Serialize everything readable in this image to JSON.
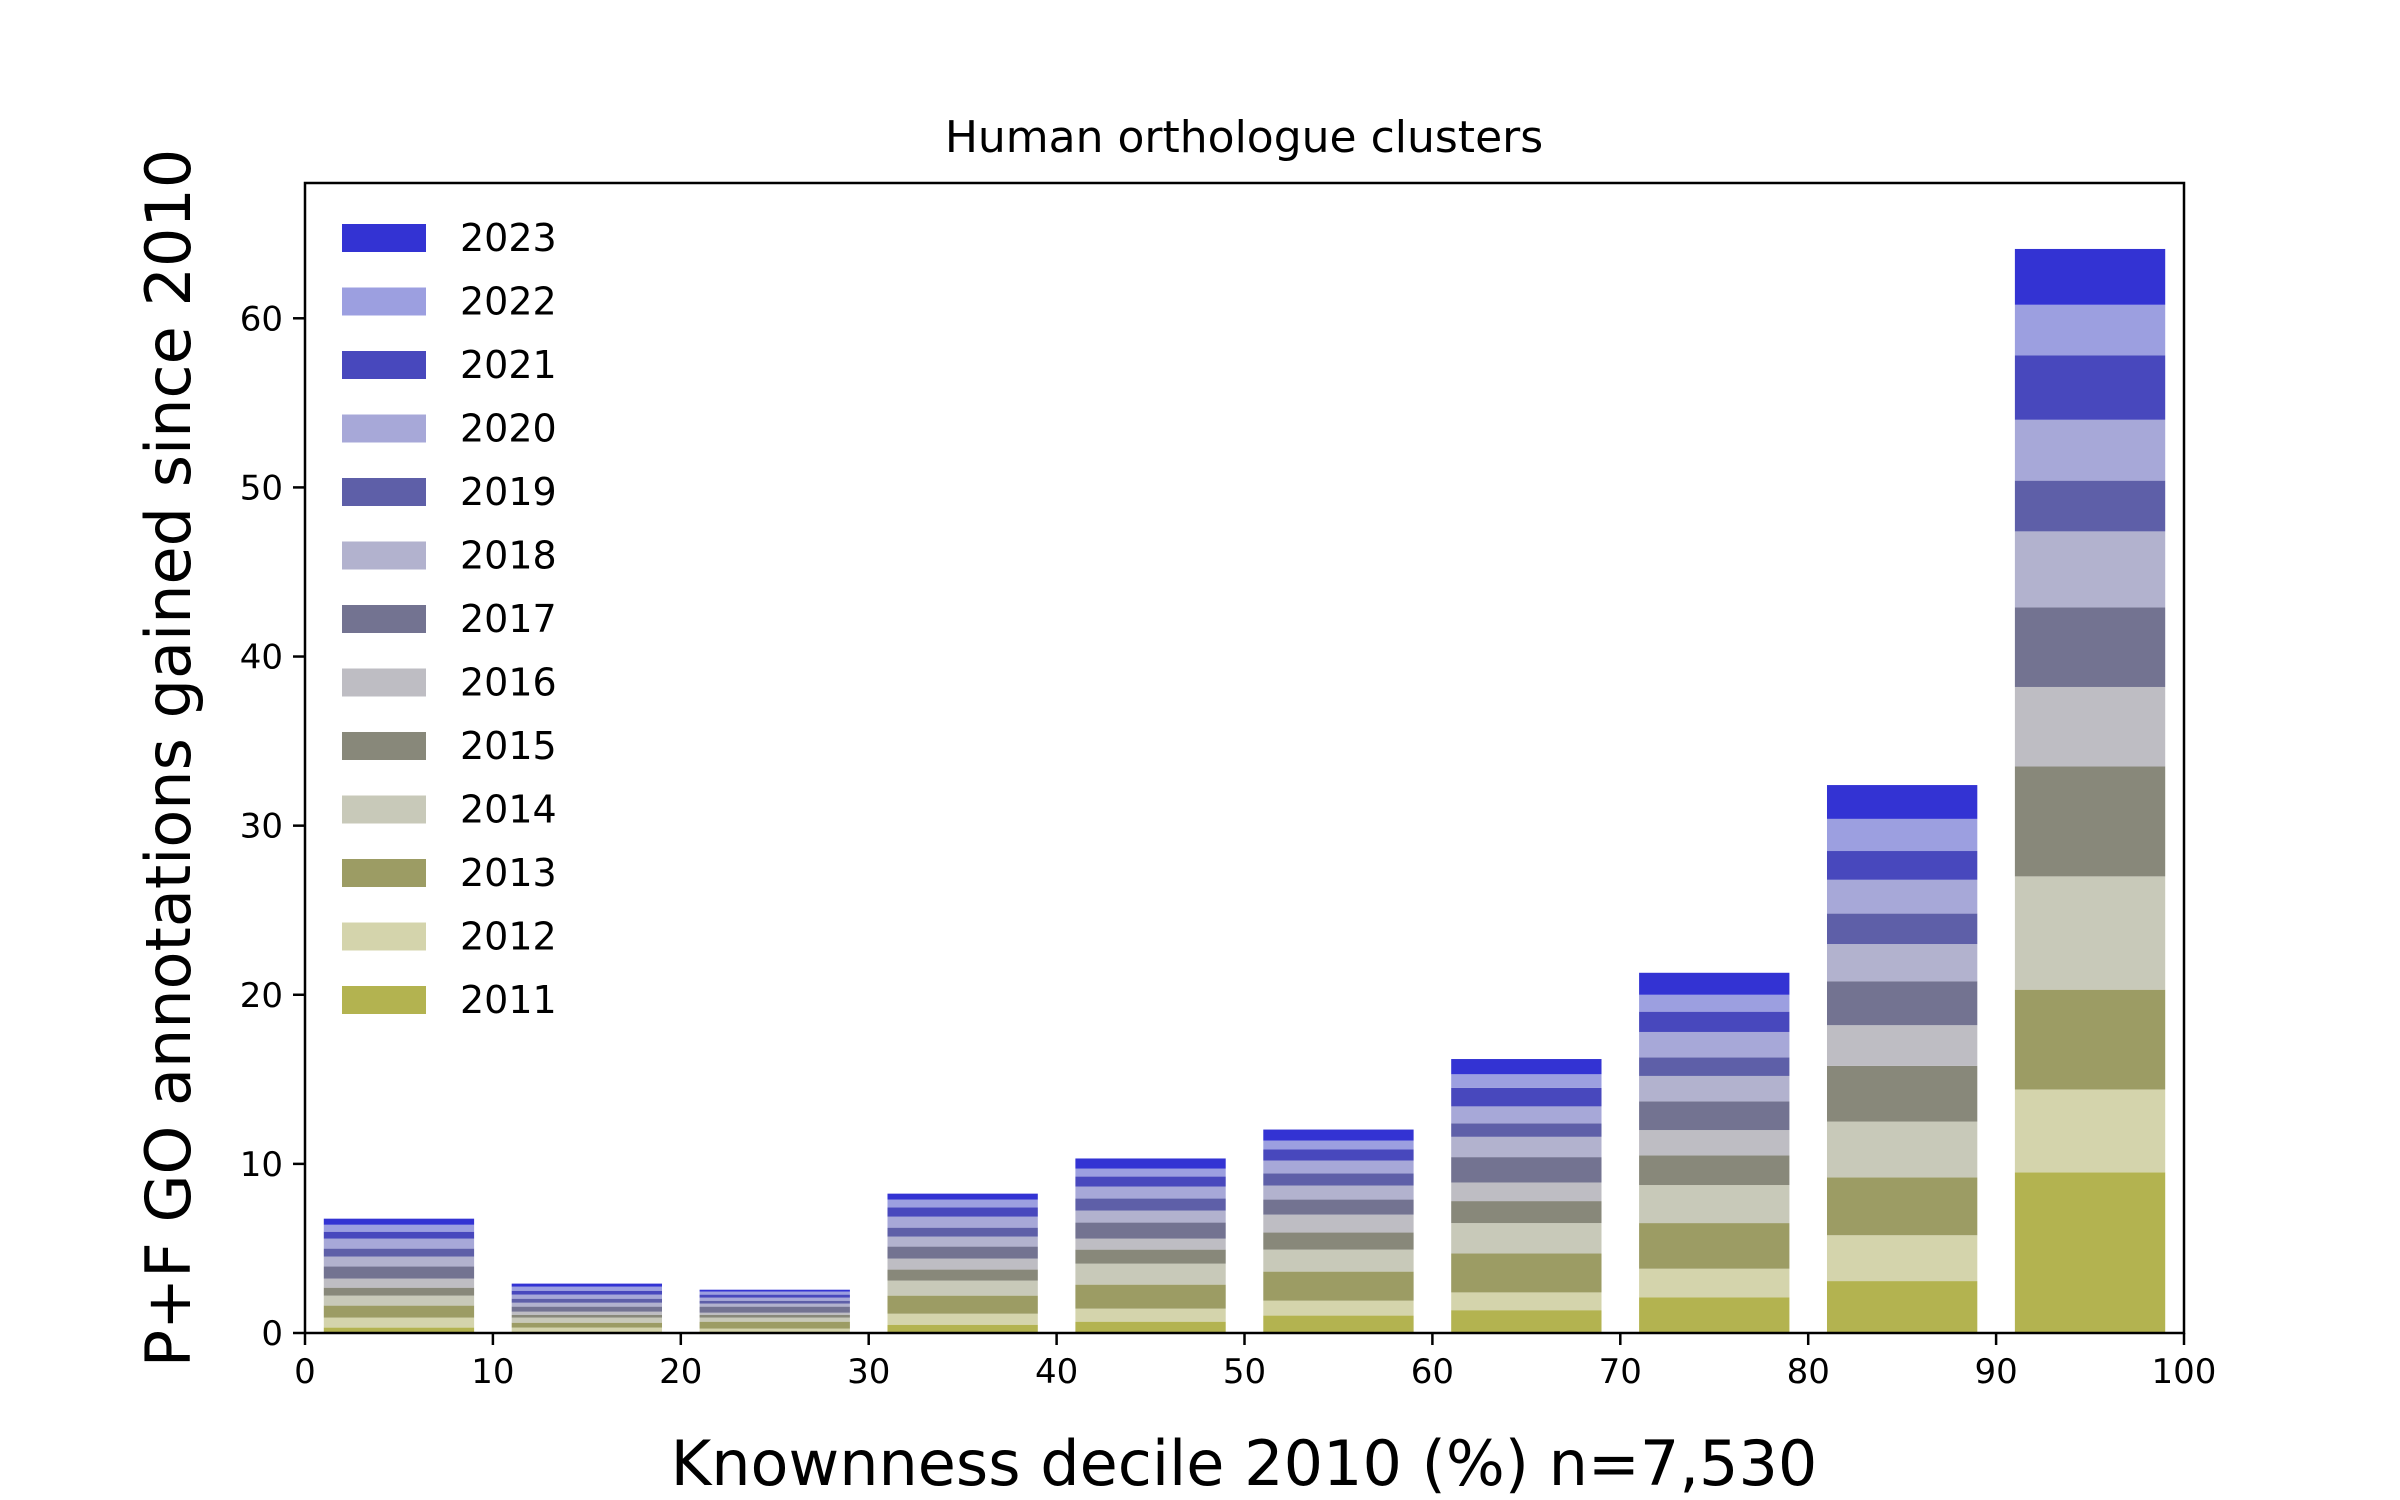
{
  "chart_data": {
    "type": "bar",
    "stacked": true,
    "title": "Human orthologue clusters",
    "xlabel": "Knownness decile 2010 (%) n=7,530",
    "ylabel": "P+F GO annotations gained since 2010",
    "xlim": [
      0,
      100
    ],
    "ylim": [
      0,
      68
    ],
    "xticks": [
      0,
      10,
      20,
      30,
      40,
      50,
      60,
      70,
      80,
      90,
      100
    ],
    "yticks": [
      0,
      10,
      20,
      30,
      40,
      50,
      60
    ],
    "categories": [
      "0-10",
      "10-20",
      "20-30",
      "30-40",
      "40-50",
      "50-60",
      "60-70",
      "70-80",
      "80-90",
      "90-100"
    ],
    "bar_start": [
      1,
      11,
      21,
      31,
      41,
      51,
      61,
      71,
      81,
      91
    ],
    "bar_width": 8,
    "legend_position": "upper-left",
    "series": [
      {
        "name": "2011",
        "color": "#b3b350",
        "values": [
          0.32,
          0.08,
          0.08,
          0.49,
          0.67,
          1.03,
          1.35,
          2.1,
          3.07,
          9.5
        ]
      },
      {
        "name": "2012",
        "color": "#d4d4ac",
        "values": [
          0.59,
          0.24,
          0.18,
          0.65,
          0.77,
          0.88,
          1.05,
          1.7,
          2.71,
          4.9
        ]
      },
      {
        "name": "2013",
        "color": "#9c9c64",
        "values": [
          0.71,
          0.29,
          0.41,
          1.07,
          1.42,
          1.72,
          2.3,
          2.7,
          3.42,
          5.9
        ]
      },
      {
        "name": "2014",
        "color": "#c8c9b9",
        "values": [
          0.59,
          0.3,
          0.24,
          0.89,
          1.24,
          1.3,
          1.8,
          2.25,
          3.3,
          6.7
        ]
      },
      {
        "name": "2015",
        "color": "#88887a",
        "values": [
          0.47,
          0.17,
          0.17,
          0.65,
          0.83,
          1.01,
          1.3,
          1.75,
          3.3,
          6.5
        ]
      },
      {
        "name": "2016",
        "color": "#bebdc3",
        "values": [
          0.54,
          0.18,
          0.12,
          0.65,
          0.65,
          1.06,
          1.1,
          1.5,
          2.4,
          4.7
        ]
      },
      {
        "name": "2017",
        "color": "#737391",
        "values": [
          0.71,
          0.3,
          0.36,
          0.71,
          0.95,
          0.89,
          1.5,
          1.7,
          2.6,
          4.7
        ]
      },
      {
        "name": "2018",
        "color": "#b2b2ce",
        "values": [
          0.59,
          0.23,
          0.18,
          0.59,
          0.71,
          0.83,
          1.2,
          1.5,
          2.2,
          4.5
        ]
      },
      {
        "name": "2019",
        "color": "#5e5fa8",
        "values": [
          0.47,
          0.24,
          0.17,
          0.53,
          0.71,
          0.71,
          0.8,
          1.1,
          1.8,
          3.0
        ]
      },
      {
        "name": "2020",
        "color": "#a7a8d8",
        "values": [
          0.59,
          0.24,
          0.18,
          0.65,
          0.71,
          0.77,
          1.0,
          1.5,
          2.0,
          3.6
        ]
      },
      {
        "name": "2021",
        "color": "#4848bd",
        "values": [
          0.41,
          0.23,
          0.18,
          0.54,
          0.59,
          0.65,
          1.1,
          1.2,
          1.7,
          3.8
        ]
      },
      {
        "name": "2022",
        "color": "#9c9fe0",
        "values": [
          0.41,
          0.24,
          0.18,
          0.47,
          0.47,
          0.53,
          0.8,
          1.0,
          1.9,
          3.0
        ]
      },
      {
        "name": "2023",
        "color": "#3333d3",
        "values": [
          0.36,
          0.18,
          0.11,
          0.35,
          0.6,
          0.65,
          0.9,
          1.3,
          2.0,
          3.3
        ]
      }
    ]
  }
}
